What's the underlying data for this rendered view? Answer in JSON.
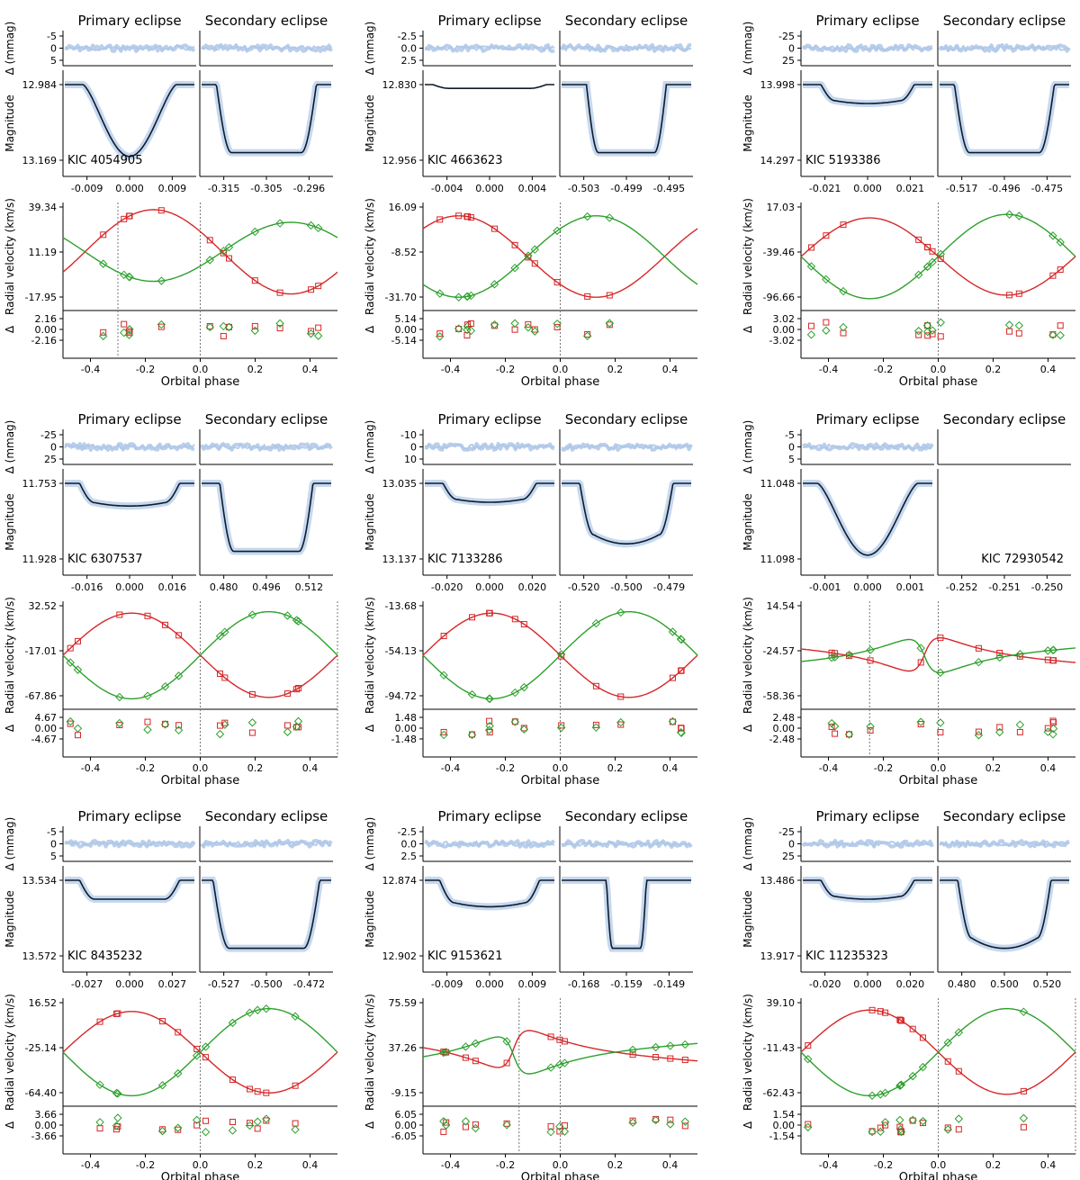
{
  "labels": {
    "primary": "Primary eclipse",
    "secondary": "Secondary eclipse",
    "resid_lc": "Δ (mmag)",
    "magnitude": "Magnitude",
    "rv": "Radial velocity (km/s)",
    "resid_rv": "Δ",
    "phase": "Orbital phase"
  },
  "colors": {
    "lc_data": "#aec7e8",
    "lc_model": "#0d1b2a",
    "primary_rv": "#d62728",
    "secondary_rv": "#2ca02c",
    "dotted": "#777777"
  },
  "chart_data": [
    {
      "type": "scatter",
      "system": "KIC 4054905",
      "lc_resid_ticks": [
        "-5",
        "0",
        "5"
      ],
      "mag_ticks": [
        "12.984",
        "13.169"
      ],
      "prim_ticks": [
        "-0.009",
        "0.000",
        "0.009"
      ],
      "sec_ticks": [
        "-0.315",
        "-0.305",
        "-0.296"
      ],
      "rv_ticks": [
        "39.34",
        "11.19",
        "-17.95"
      ],
      "rv_resid_ticks": [
        "2.16",
        "0.00",
        "-2.16"
      ],
      "phase_ticks": [
        "-0.4",
        "-0.2",
        "0.0",
        "0.2",
        "0.4"
      ],
      "prim_depth": 0.95,
      "sec_depth": 0.9,
      "prim_shape": "v",
      "sec_shape": "flat",
      "prim_width": 0.7,
      "sec_width": 0.75,
      "rv_k1": 0.6,
      "rv_k2": 0.42,
      "rv_gamma": 0.55,
      "rv_phase_shift": 0.08,
      "ecc": 0.0,
      "dotted_lines": [
        -0.3,
        0.0
      ]
    },
    {
      "type": "scatter",
      "system": "KIC 4663623",
      "lc_resid_ticks": [
        "-2.5",
        "0.0",
        "2.5"
      ],
      "mag_ticks": [
        "12.830",
        "12.956"
      ],
      "prim_ticks": [
        "-0.004",
        "0.000",
        "0.004"
      ],
      "sec_ticks": [
        "-0.503",
        "-0.499",
        "-0.495"
      ],
      "rv_ticks": [
        "16.09",
        "-8.52",
        "-31.70"
      ],
      "rv_resid_ticks": [
        "5.14",
        "0.00",
        "-5.14"
      ],
      "phase_ticks": [
        "-0.4",
        "-0.2",
        "0.0",
        "0.2",
        "0.4"
      ],
      "prim_depth": 0.05,
      "sec_depth": 0.9,
      "prim_shape": "flat",
      "sec_shape": "flat",
      "prim_width": 0.85,
      "sec_width": 0.6,
      "rv_k1": 0.58,
      "rv_k2": 0.58,
      "rv_gamma": 0.5,
      "rv_phase_shift": -0.12,
      "ecc": 0.0,
      "dotted_lines": [
        0.0
      ]
    },
    {
      "type": "scatter",
      "system": "KIC 5193386",
      "lc_resid_ticks": [
        "-25",
        "0",
        "25"
      ],
      "mag_ticks": [
        "13.998",
        "14.297"
      ],
      "prim_ticks": [
        "-0.021",
        "0.000",
        "0.021"
      ],
      "sec_ticks": [
        "-0.517",
        "-0.496",
        "-0.475"
      ],
      "rv_ticks": [
        "17.03",
        "-39.46",
        "-96.66"
      ],
      "rv_resid_ticks": [
        "3.02",
        "0.00",
        "-3.02"
      ],
      "phase_ticks": [
        "-0.4",
        "-0.2",
        "0.0",
        "0.2",
        "0.4"
      ],
      "prim_depth": 0.25,
      "sec_depth": 0.9,
      "prim_shape": "round",
      "sec_shape": "flat",
      "prim_width": 0.7,
      "sec_width": 0.75,
      "rv_k1": 0.55,
      "rv_k2": 0.6,
      "rv_gamma": 0.5,
      "rv_phase_shift": 0.0,
      "ecc": 0.0,
      "dotted_lines": [
        0.0
      ]
    },
    {
      "type": "scatter",
      "system": "KIC 6307537",
      "lc_resid_ticks": [
        "-25",
        "0",
        "25"
      ],
      "mag_ticks": [
        "11.753",
        "11.928"
      ],
      "prim_ticks": [
        "-0.016",
        "0.000",
        "0.016"
      ],
      "sec_ticks": [
        "0.480",
        "0.496",
        "0.512"
      ],
      "rv_ticks": [
        "32.52",
        "-17.01",
        "-67.86"
      ],
      "rv_resid_ticks": [
        "4.67",
        "0.00",
        "-4.67"
      ],
      "phase_ticks": [
        "-0.4",
        "-0.2",
        "0.0",
        "0.2",
        "0.4"
      ],
      "prim_depth": 0.3,
      "sec_depth": 0.9,
      "prim_shape": "round",
      "sec_shape": "flat",
      "prim_width": 0.75,
      "sec_width": 0.7,
      "rv_k1": 0.6,
      "rv_k2": 0.62,
      "rv_gamma": 0.5,
      "rv_phase_shift": 0.0,
      "ecc": 0.0,
      "dotted_lines": [
        0.0,
        0.5
      ]
    },
    {
      "type": "scatter",
      "system": "KIC 7133286",
      "lc_resid_ticks": [
        "-10",
        "0",
        "10"
      ],
      "mag_ticks": [
        "13.035",
        "13.137"
      ],
      "prim_ticks": [
        "-0.020",
        "0.000",
        "0.020"
      ],
      "sec_ticks": [
        "-0.520",
        "-0.500",
        "-0.479"
      ],
      "rv_ticks": [
        "-13.68",
        "-54.13",
        "-94.72"
      ],
      "rv_resid_ticks": [
        "1.48",
        "0.00",
        "-1.48"
      ],
      "phase_ticks": [
        "-0.4",
        "-0.2",
        "0.0",
        "0.2",
        "0.4"
      ],
      "prim_depth": 0.25,
      "sec_depth": 0.8,
      "prim_shape": "round",
      "sec_shape": "round",
      "prim_width": 0.7,
      "sec_width": 0.7,
      "rv_k1": 0.6,
      "rv_k2": 0.62,
      "rv_gamma": 0.5,
      "rv_phase_shift": 0.0,
      "ecc": 0.0,
      "dotted_lines": [
        0.0
      ]
    },
    {
      "type": "scatter",
      "system": "KIC 72930542",
      "lc_resid_ticks": [
        "-5",
        "0",
        "5"
      ],
      "mag_ticks": [
        "11.048",
        "11.098"
      ],
      "prim_ticks": [
        "-0.001",
        "0.000",
        "0.001"
      ],
      "sec_ticks": [
        "-0.252",
        "-0.251",
        "-0.250"
      ],
      "rv_ticks": [
        "14.54",
        "-24.57",
        "-58.36"
      ],
      "rv_resid_ticks": [
        "2.48",
        "0.00",
        "-2.48"
      ],
      "phase_ticks": [
        "-0.4",
        "-0.2",
        "0.0",
        "0.2",
        "0.4"
      ],
      "prim_depth": 0.95,
      "sec_depth": 0.0,
      "prim_shape": "v",
      "sec_shape": "none",
      "prim_width": 0.75,
      "sec_width": 0.0,
      "rv_k1": 0.45,
      "rv_k2": 0.45,
      "rv_gamma": 0.5,
      "rv_phase_shift": 0.0,
      "ecc": 0.7,
      "dotted_lines": [
        -0.25,
        0.0
      ]
    },
    {
      "type": "scatter",
      "system": "KIC 8435232",
      "lc_resid_ticks": [
        "-5",
        "0",
        "5"
      ],
      "mag_ticks": [
        "13.534",
        "13.572"
      ],
      "prim_ticks": [
        "-0.027",
        "0.000",
        "0.027"
      ],
      "sec_ticks": [
        "-0.527",
        "-0.500",
        "-0.472"
      ],
      "rv_ticks": [
        "16.52",
        "-25.14",
        "-64.40"
      ],
      "rv_resid_ticks": [
        "3.66",
        "0.00",
        "-3.66"
      ],
      "phase_ticks": [
        "-0.4",
        "-0.2",
        "0.0",
        "0.2",
        "0.4"
      ],
      "prim_depth": 0.25,
      "sec_depth": 0.9,
      "prim_shape": "flat",
      "sec_shape": "flat",
      "prim_width": 0.75,
      "sec_width": 0.8,
      "rv_k1": 0.58,
      "rv_k2": 0.62,
      "rv_gamma": 0.5,
      "rv_phase_shift": 0.0,
      "ecc": 0.0,
      "dotted_lines": [
        0.0
      ]
    },
    {
      "type": "scatter",
      "system": "KIC 9153621",
      "lc_resid_ticks": [
        "-2.5",
        "0.0",
        "2.5"
      ],
      "mag_ticks": [
        "12.874",
        "12.902"
      ],
      "prim_ticks": [
        "-0.009",
        "0.000",
        "0.009"
      ],
      "sec_ticks": [
        "-0.168",
        "-0.159",
        "-0.149"
      ],
      "rv_ticks": [
        "75.59",
        "37.26",
        "-9.15"
      ],
      "rv_resid_ticks": [
        "6.05",
        "0.00",
        "-6.05"
      ],
      "phase_ticks": [
        "-0.4",
        "-0.2",
        "0.0",
        "0.2",
        "0.4"
      ],
      "prim_depth": 0.35,
      "sec_depth": 0.9,
      "prim_shape": "round",
      "sec_shape": "flat",
      "prim_width": 0.75,
      "sec_width": 0.3,
      "rv_k1": 0.5,
      "rv_k2": 0.5,
      "rv_gamma": 0.5,
      "rv_phase_shift": -0.12,
      "ecc": 0.7,
      "dotted_lines": [
        -0.15,
        0.0
      ]
    },
    {
      "type": "scatter",
      "system": "KIC 11235323",
      "lc_resid_ticks": [
        "-25",
        "0",
        "25"
      ],
      "mag_ticks": [
        "13.486",
        "13.917"
      ],
      "prim_ticks": [
        "-0.020",
        "0.000",
        "0.020"
      ],
      "sec_ticks": [
        "0.480",
        "0.500",
        "0.520"
      ],
      "rv_ticks": [
        "39.10",
        "-11.43",
        "-62.43"
      ],
      "rv_resid_ticks": [
        "1.54",
        "0.00",
        "-1.54"
      ],
      "phase_ticks": [
        "-0.4",
        "-0.2",
        "0.0",
        "0.2",
        "0.4"
      ],
      "prim_depth": 0.25,
      "sec_depth": 0.9,
      "prim_shape": "round",
      "sec_shape": "round",
      "prim_width": 0.7,
      "sec_width": 0.7,
      "rv_k1": 0.6,
      "rv_k2": 0.62,
      "rv_gamma": 0.5,
      "rv_phase_shift": 0.0,
      "ecc": 0.0,
      "dotted_lines": [
        0.0,
        0.5
      ]
    }
  ]
}
